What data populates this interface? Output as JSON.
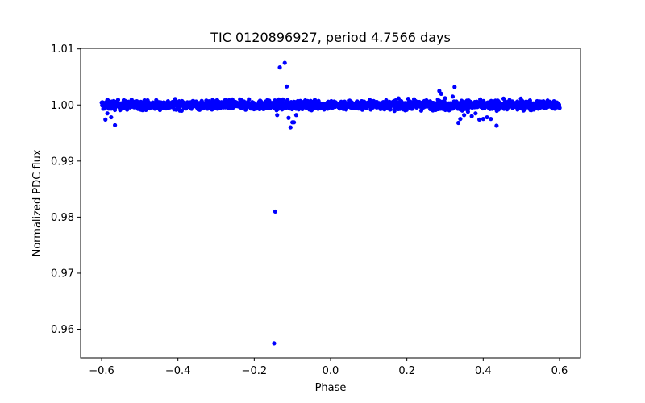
{
  "chart_data": {
    "type": "scatter",
    "title": "TIC 0120896927, period 4.7566 days",
    "xlabel": "Phase",
    "ylabel": "Normalized PDC flux",
    "xlim": [
      -0.655,
      0.655
    ],
    "ylim": [
      0.9549,
      1.0101
    ],
    "xticks": [
      -0.6,
      -0.4,
      -0.2,
      0.0,
      0.2,
      0.4,
      0.6
    ],
    "xtick_labels": [
      "−0.6",
      "−0.4",
      "−0.2",
      "0.0",
      "0.2",
      "0.4",
      "0.6"
    ],
    "yticks": [
      0.96,
      0.97,
      0.98,
      0.99,
      1.0,
      1.01
    ],
    "ytick_labels": [
      "0.96",
      "0.97",
      "0.98",
      "0.99",
      "1.00",
      "1.01"
    ],
    "marker_color": "#0000ff",
    "series": [
      {
        "name": "baseline",
        "x_range": [
          -0.6,
          0.6
        ],
        "baseline": 1.0,
        "scatter": 0.0004,
        "count": 1800
      },
      {
        "name": "outliers",
        "x": [
          -0.148,
          -0.145,
          -0.133,
          -0.12,
          -0.115,
          -0.11,
          -0.105,
          -0.1,
          -0.096,
          -0.09,
          -0.085,
          -0.14,
          -0.125,
          -0.59,
          -0.575,
          -0.565,
          -0.585,
          0.285,
          0.29,
          0.3,
          0.32,
          0.325,
          0.335,
          0.34,
          0.35,
          0.36,
          0.37,
          0.38,
          0.39,
          0.4,
          0.41,
          0.42,
          0.435,
          0.345
        ],
        "y": [
          0.9575,
          0.981,
          1.0067,
          1.0075,
          1.0033,
          0.9977,
          0.996,
          0.9969,
          0.9969,
          0.9982,
          0.9995,
          0.9982,
          0.9994,
          0.9974,
          0.9978,
          0.9964,
          0.9985,
          1.0025,
          1.002,
          1.0012,
          1.0015,
          1.0032,
          0.9968,
          0.9975,
          0.9982,
          0.9988,
          0.998,
          0.9985,
          0.9974,
          0.9975,
          0.9978,
          0.9975,
          0.9963,
          0.999
        ]
      }
    ]
  }
}
